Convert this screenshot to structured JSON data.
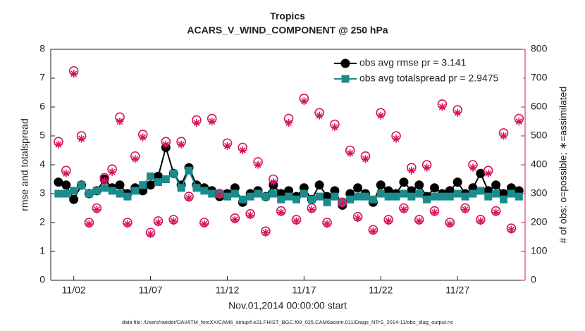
{
  "chart_data": {
    "type": "line",
    "title": "Tropics",
    "subtitle": "ACARS_V_WIND_COMPONENT @ 250 hPa",
    "xlabel": "Nov.01,2014 00:00:00 start",
    "ylabel": "rmse and totalspread",
    "y2label": "# of obs: o=possible; ∗=assimilated",
    "footnote": "data file: /Users/raeder/DAI/ATM_forcXX/CAM6_setup/f.e21.FHIST_BGC.f09_025.CAM6assim.011/Diags_NTrS_2014-11/obs_diag_output.nc",
    "x": [
      0,
      0.5,
      1,
      1.5,
      2,
      2.5,
      3,
      3.5,
      4,
      4.5,
      5,
      5.5,
      6,
      6.5,
      7,
      7.5,
      8,
      8.5,
      9,
      9.5,
      10,
      10.5,
      11,
      11.5,
      12,
      12.5,
      13,
      13.5,
      14,
      14.5,
      15,
      15.5,
      16,
      16.5,
      17,
      17.5,
      18,
      18.5,
      19,
      19.5,
      20,
      20.5,
      21,
      21.5,
      22,
      22.5,
      23,
      23.5,
      24,
      24.5,
      25,
      25.5,
      26,
      26.5,
      27,
      27.5,
      28,
      28.5,
      29,
      29.5,
      30
    ],
    "xlim": [
      -0.5,
      30.4
    ],
    "xticks": [
      {
        "value": 1,
        "label": "11/02"
      },
      {
        "value": 6,
        "label": "11/07"
      },
      {
        "value": 11,
        "label": "11/12"
      },
      {
        "value": 16,
        "label": "11/17"
      },
      {
        "value": 21,
        "label": "11/22"
      },
      {
        "value": 26,
        "label": "11/27"
      }
    ],
    "ylim": [
      0,
      8
    ],
    "yticks": [
      0,
      1,
      2,
      3,
      4,
      5,
      6,
      7,
      8
    ],
    "y2lim": [
      0,
      800
    ],
    "y2ticks": [
      0,
      100,
      200,
      300,
      400,
      500,
      600,
      700,
      800
    ],
    "y2color": "#d6145f",
    "legend": "northeast",
    "series": [
      {
        "name": "obs avg rmse pr = 3.141",
        "color": "#000000",
        "marker": "circle",
        "line": true,
        "values": [
          3.4,
          3.3,
          2.8,
          3.3,
          3.0,
          3.1,
          3.5,
          3.2,
          3.3,
          3.0,
          3.2,
          3.1,
          3.3,
          3.6,
          4.6,
          3.7,
          3.3,
          3.9,
          3.3,
          3.2,
          3.1,
          2.9,
          3.0,
          3.2,
          2.7,
          3.0,
          3.1,
          2.9,
          3.3,
          3.0,
          3.1,
          2.9,
          3.2,
          2.8,
          3.3,
          2.9,
          3.1,
          2.6,
          3.0,
          3.2,
          3.0,
          2.7,
          3.3,
          3.1,
          3.0,
          3.4,
          3.1,
          3.3,
          2.9,
          3.2,
          3.0,
          3.1,
          3.4,
          3.0,
          3.2,
          3.7,
          3.1,
          3.3,
          3.0,
          3.2,
          3.1
        ]
      },
      {
        "name": "obs avg totalspread pr = 2.9475",
        "color": "#1a8c8c",
        "marker": "square",
        "line": true,
        "values": [
          3.0,
          3.0,
          3.1,
          3.3,
          3.0,
          3.1,
          3.2,
          3.1,
          3.0,
          2.9,
          3.1,
          3.3,
          3.6,
          3.4,
          3.5,
          3.7,
          3.2,
          3.8,
          3.2,
          3.1,
          3.0,
          3.0,
          2.9,
          3.0,
          2.8,
          2.9,
          3.0,
          2.9,
          3.0,
          2.8,
          2.9,
          2.8,
          3.0,
          2.8,
          2.9,
          2.7,
          2.9,
          2.7,
          2.8,
          2.9,
          2.9,
          2.8,
          3.0,
          2.9,
          2.9,
          3.0,
          2.9,
          3.0,
          2.8,
          2.9,
          2.9,
          2.9,
          3.0,
          2.9,
          3.0,
          3.1,
          2.9,
          3.0,
          2.8,
          3.0,
          2.9
        ]
      },
      {
        "color": "#d6145f",
        "marker": "o",
        "line": false,
        "axis": "y2",
        "values": [
          480,
          380,
          725,
          500,
          200,
          250,
          355,
          385,
          565,
          200,
          430,
          505,
          165,
          205,
          480,
          210,
          480,
          290,
          555,
          200,
          560,
          300,
          475,
          215,
          460,
          230,
          410,
          170,
          350,
          240,
          560,
          210,
          630,
          250,
          580,
          200,
          540,
          270,
          450,
          220,
          430,
          175,
          580,
          210,
          500,
          250,
          390,
          210,
          400,
          240,
          610,
          200,
          590,
          250,
          400,
          210,
          380,
          240,
          510,
          180,
          560
        ]
      },
      {
        "color": "#d6145f",
        "marker": "*",
        "line": false,
        "axis": "y2",
        "values": [
          470,
          370,
          715,
          490,
          195,
          245,
          345,
          375,
          550,
          195,
          420,
          495,
          160,
          200,
          470,
          205,
          470,
          285,
          545,
          195,
          550,
          295,
          465,
          210,
          450,
          225,
          400,
          165,
          340,
          235,
          545,
          205,
          620,
          245,
          570,
          195,
          530,
          265,
          440,
          215,
          420,
          170,
          570,
          205,
          490,
          245,
          380,
          205,
          390,
          235,
          600,
          195,
          580,
          245,
          390,
          205,
          370,
          235,
          500,
          175,
          550
        ]
      }
    ]
  }
}
